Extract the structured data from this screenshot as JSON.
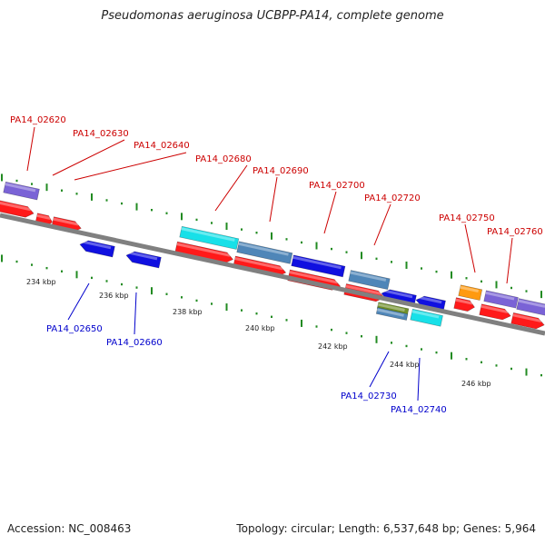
{
  "title": "Pseudomonas aeruginosa UCBPP-PA14, complete genome",
  "footer": {
    "accession": "Accession: NC_008463",
    "topology": "Topology: circular; Length: 6,537,648 bp; Genes: 5,964"
  },
  "colors": {
    "backbone": "#808080",
    "tick": "#228B22",
    "top_label": "#cc0000",
    "bottom_label": "#0000cc",
    "leader_top": "#cc0000",
    "leader_bottom": "#0000cc"
  },
  "scale_labels": [
    "234 kbp",
    "236 kbp",
    "238 kbp",
    "240 kbp",
    "242 kbp",
    "244 kbp",
    "246 kbp"
  ],
  "top_gene_labels": [
    "PA14_02620",
    "PA14_02630",
    "PA14_02640",
    "PA14_02680",
    "PA14_02690",
    "PA14_02700",
    "PA14_02720",
    "PA14_02750",
    "PA14_02760"
  ],
  "bottom_gene_labels": [
    "PA14_02650",
    "PA14_02660",
    "PA14_02730",
    "PA14_02740"
  ],
  "feature_colors": {
    "red": "#ff1a1a",
    "blue": "#1010e0",
    "cyan": "#18e0e8",
    "steel": "#4f86b8",
    "purple": "#7a63d6",
    "orange": "#ff9a10",
    "olive": "#6f8f2a"
  }
}
